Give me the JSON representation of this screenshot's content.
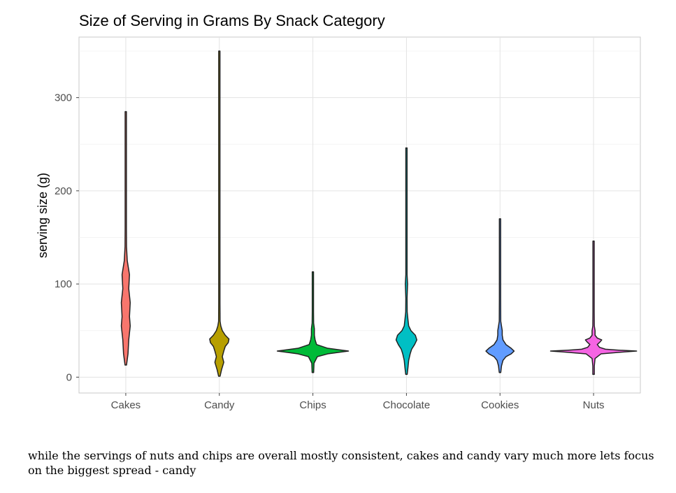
{
  "chart_data": {
    "type": "violin",
    "title": "Size of Serving in Grams By Snack Category",
    "xlabel": "",
    "ylabel": "serving size (g)",
    "ylim": [
      -17,
      365
    ],
    "y_ticks": [
      0,
      100,
      200,
      300
    ],
    "grid": true,
    "legend": "none",
    "categories": [
      "Cakes",
      "Candy",
      "Chips",
      "Chocolate",
      "Cookies",
      "Nuts"
    ],
    "series": [
      {
        "category": "Cakes",
        "color": "#F8766D",
        "min": 13,
        "max": 285,
        "density": [
          [
            13,
            1
          ],
          [
            25,
            3
          ],
          [
            40,
            4
          ],
          [
            55,
            6
          ],
          [
            65,
            5
          ],
          [
            80,
            6
          ],
          [
            95,
            4
          ],
          [
            110,
            5
          ],
          [
            125,
            2
          ],
          [
            140,
            1
          ],
          [
            160,
            0.5
          ],
          [
            200,
            0.3
          ],
          [
            285,
            0.3
          ]
        ]
      },
      {
        "category": "Candy",
        "color": "#B79F00",
        "min": 1,
        "max": 350,
        "density": [
          [
            1,
            1
          ],
          [
            8,
            3
          ],
          [
            16,
            6
          ],
          [
            22,
            4
          ],
          [
            28,
            6
          ],
          [
            33,
            8
          ],
          [
            37,
            12
          ],
          [
            41,
            13
          ],
          [
            45,
            8
          ],
          [
            50,
            4
          ],
          [
            55,
            2
          ],
          [
            60,
            1
          ],
          [
            80,
            0.5
          ],
          [
            100,
            0.5
          ],
          [
            120,
            0.3
          ],
          [
            350,
            0.3
          ]
        ]
      },
      {
        "category": "Chips",
        "color": "#00BA38",
        "min": 5,
        "max": 113,
        "density": [
          [
            5,
            1
          ],
          [
            15,
            1.5
          ],
          [
            22,
            6
          ],
          [
            25,
            20
          ],
          [
            28,
            48
          ],
          [
            31,
            20
          ],
          [
            35,
            5
          ],
          [
            40,
            3
          ],
          [
            45,
            2
          ],
          [
            52,
            2
          ],
          [
            58,
            1
          ],
          [
            70,
            0.5
          ],
          [
            113,
            0.3
          ]
        ]
      },
      {
        "category": "Chocolate",
        "color": "#00BFC4",
        "min": 3,
        "max": 246,
        "density": [
          [
            3,
            1
          ],
          [
            10,
            2
          ],
          [
            18,
            3
          ],
          [
            25,
            5
          ],
          [
            30,
            7
          ],
          [
            35,
            11
          ],
          [
            40,
            14
          ],
          [
            45,
            12
          ],
          [
            50,
            6
          ],
          [
            55,
            3
          ],
          [
            62,
            2
          ],
          [
            70,
            1
          ],
          [
            85,
            0.8
          ],
          [
            100,
            1.5
          ],
          [
            110,
            0.5
          ],
          [
            246,
            0.3
          ]
        ]
      },
      {
        "category": "Cookies",
        "color": "#619CFF",
        "min": 5,
        "max": 170,
        "density": [
          [
            5,
            1
          ],
          [
            12,
            2
          ],
          [
            18,
            4
          ],
          [
            22,
            8
          ],
          [
            25,
            15
          ],
          [
            28,
            19
          ],
          [
            31,
            15
          ],
          [
            35,
            8
          ],
          [
            40,
            4
          ],
          [
            45,
            3
          ],
          [
            50,
            3
          ],
          [
            55,
            2
          ],
          [
            60,
            1
          ],
          [
            85,
            0.7
          ],
          [
            100,
            0.7
          ],
          [
            170,
            0.3
          ]
        ]
      },
      {
        "category": "Nuts",
        "color": "#F564E3",
        "min": 3,
        "max": 146,
        "density": [
          [
            3,
            1
          ],
          [
            12,
            1
          ],
          [
            20,
            2
          ],
          [
            25,
            10
          ],
          [
            27,
            40
          ],
          [
            28,
            58
          ],
          [
            29,
            34
          ],
          [
            30,
            16
          ],
          [
            32,
            8
          ],
          [
            35,
            5
          ],
          [
            38,
            9
          ],
          [
            40,
            11
          ],
          [
            42,
            5
          ],
          [
            45,
            2
          ],
          [
            50,
            2
          ],
          [
            55,
            1
          ],
          [
            70,
            0.5
          ],
          [
            146,
            0.3
          ]
        ]
      }
    ]
  },
  "caption": "while the servings of nuts and chips are overall mostly consistent, cakes and candy vary much more lets focus on the biggest spread - candy"
}
